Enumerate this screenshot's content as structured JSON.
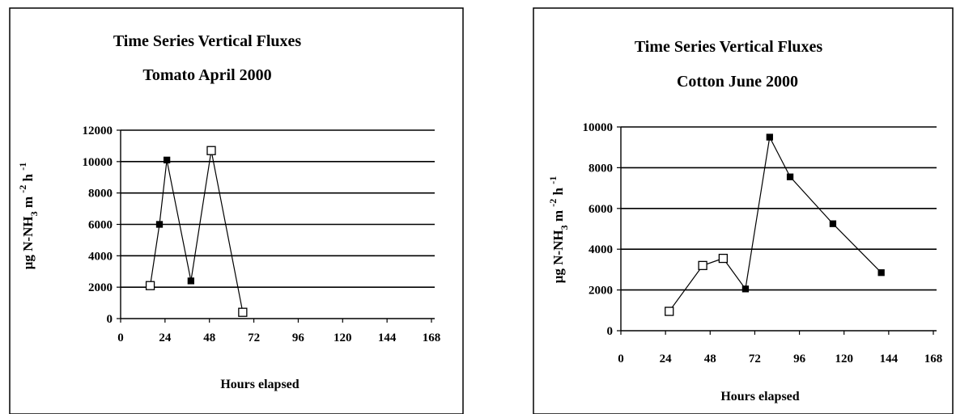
{
  "chart_data": [
    {
      "type": "line",
      "title": "Time Series Vertical Fluxes",
      "subtitle": "Tomato  April 2000",
      "xlabel": "Hours elapsed",
      "ylabel": "μg N-NH3  m-2 h-1",
      "xlim": [
        0,
        168
      ],
      "ylim": [
        0,
        12000
      ],
      "xticks": [
        0,
        24,
        48,
        72,
        96,
        120,
        144,
        168
      ],
      "yticks": [
        0,
        2000,
        4000,
        6000,
        8000,
        10000,
        12000
      ],
      "grid": "horizontal",
      "legend": "none",
      "points": [
        {
          "x": 16,
          "y": 2100,
          "marker": "open-square"
        },
        {
          "x": 21,
          "y": 6000,
          "marker": "filled-square"
        },
        {
          "x": 25,
          "y": 10100,
          "marker": "filled-square"
        },
        {
          "x": 38,
          "y": 2400,
          "marker": "filled-square"
        },
        {
          "x": 49,
          "y": 10700,
          "marker": "open-square"
        },
        {
          "x": 66,
          "y": 400,
          "marker": "open-square"
        }
      ]
    },
    {
      "type": "line",
      "title": "Time Series Vertical Fluxes",
      "subtitle": "Cotton  June 2000",
      "xlabel": "Hours elapsed",
      "ylabel": "μg N-NH3  m-2 h-1",
      "xlim": [
        0,
        168
      ],
      "ylim": [
        0,
        10000
      ],
      "xticks": [
        0,
        24,
        48,
        72,
        96,
        120,
        144,
        168
      ],
      "yticks": [
        0,
        2000,
        4000,
        6000,
        8000,
        10000
      ],
      "grid": "horizontal",
      "legend": "none",
      "points": [
        {
          "x": 26,
          "y": 950,
          "marker": "open-square"
        },
        {
          "x": 44,
          "y": 3200,
          "marker": "open-square"
        },
        {
          "x": 55,
          "y": 3550,
          "marker": "open-square"
        },
        {
          "x": 67,
          "y": 2050,
          "marker": "filled-square"
        },
        {
          "x": 80,
          "y": 9500,
          "marker": "filled-square"
        },
        {
          "x": 91,
          "y": 7550,
          "marker": "filled-square"
        },
        {
          "x": 114,
          "y": 5250,
          "marker": "filled-square"
        },
        {
          "x": 140,
          "y": 2850,
          "marker": "filled-square"
        }
      ]
    }
  ]
}
